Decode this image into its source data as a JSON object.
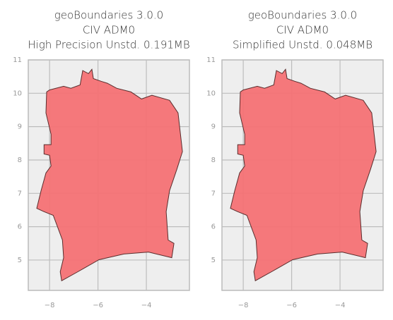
{
  "chart_data": [
    {
      "type": "map",
      "title": [
        "geoBoundaries 3.0.0",
        "CIV ADM0",
        "High Precision Unstd. 0.191MB"
      ],
      "xlim": [
        -8.88,
        -2.22
      ],
      "ylim": [
        4.09,
        11.0
      ],
      "xticks": [
        {
          "value": -8,
          "label": "−8"
        },
        {
          "value": -6,
          "label": "−6"
        },
        {
          "value": -4,
          "label": "−4"
        }
      ],
      "yticks": [
        5,
        6,
        7,
        8,
        9,
        10,
        11
      ],
      "grid": true,
      "color": "#f47174",
      "edgecolor": "#5a2e2e",
      "x": [
        -8.12,
        -8.0,
        -7.42,
        -7.12,
        -6.74,
        -6.63,
        -6.39,
        -6.25,
        -6.19,
        -5.87,
        -5.61,
        -5.23,
        -4.64,
        -4.2,
        -3.77,
        -3.04,
        -2.69,
        -2.51,
        -2.74,
        -3.04,
        -3.18,
        -3.1,
        -2.86,
        -2.95,
        -3.91,
        -4.93,
        -5.96,
        -6.83,
        -7.5,
        -7.56,
        -7.42,
        -7.47,
        -7.85,
        -8.23,
        -8.53,
        -8.35,
        -8.15,
        -7.94,
        -8.0,
        -8.23,
        -8.23,
        -7.94,
        -7.94,
        -8.15
      ],
      "y": [
        10.04,
        10.1,
        10.21,
        10.15,
        10.25,
        10.68,
        10.59,
        10.72,
        10.44,
        10.36,
        10.3,
        10.15,
        10.04,
        9.83,
        9.94,
        9.79,
        9.41,
        8.25,
        7.72,
        7.08,
        6.45,
        5.6,
        5.5,
        5.07,
        5.24,
        5.18,
        5.01,
        4.65,
        4.38,
        4.65,
        5.07,
        5.6,
        6.34,
        6.45,
        6.55,
        7.08,
        7.61,
        7.82,
        8.14,
        8.18,
        8.46,
        8.46,
        8.77,
        9.41
      ]
    },
    {
      "type": "map",
      "title": [
        "geoBoundaries 3.0.0",
        "CIV ADM0",
        "Simplified Unstd. 0.048MB"
      ],
      "xlim": [
        -8.88,
        -2.22
      ],
      "ylim": [
        4.09,
        11.0
      ],
      "xticks": [
        {
          "value": -8,
          "label": "−8"
        },
        {
          "value": -6,
          "label": "−6"
        },
        {
          "value": -4,
          "label": "−4"
        }
      ],
      "yticks": [
        5,
        6,
        7,
        8,
        9,
        10,
        11
      ],
      "grid": true,
      "color": "#f47174",
      "edgecolor": "#5a2e2e",
      "x": [
        -8.12,
        -8.0,
        -7.42,
        -7.12,
        -6.74,
        -6.63,
        -6.39,
        -6.25,
        -6.19,
        -5.87,
        -5.61,
        -5.23,
        -4.64,
        -4.2,
        -3.77,
        -3.04,
        -2.69,
        -2.51,
        -2.74,
        -3.04,
        -3.18,
        -3.1,
        -2.86,
        -2.95,
        -3.91,
        -4.93,
        -5.96,
        -6.83,
        -7.5,
        -7.56,
        -7.42,
        -7.47,
        -7.85,
        -8.23,
        -8.53,
        -8.35,
        -8.15,
        -7.94,
        -8.0,
        -8.23,
        -8.23,
        -7.94,
        -7.94,
        -8.15
      ],
      "y": [
        10.04,
        10.1,
        10.21,
        10.15,
        10.25,
        10.68,
        10.59,
        10.72,
        10.44,
        10.36,
        10.3,
        10.15,
        10.04,
        9.83,
        9.94,
        9.79,
        9.41,
        8.25,
        7.72,
        7.08,
        6.45,
        5.6,
        5.5,
        5.07,
        5.24,
        5.18,
        5.01,
        4.65,
        4.38,
        4.65,
        5.07,
        5.6,
        6.34,
        6.45,
        6.55,
        7.08,
        7.61,
        7.82,
        8.14,
        8.18,
        8.46,
        8.46,
        8.77,
        9.41
      ]
    }
  ]
}
